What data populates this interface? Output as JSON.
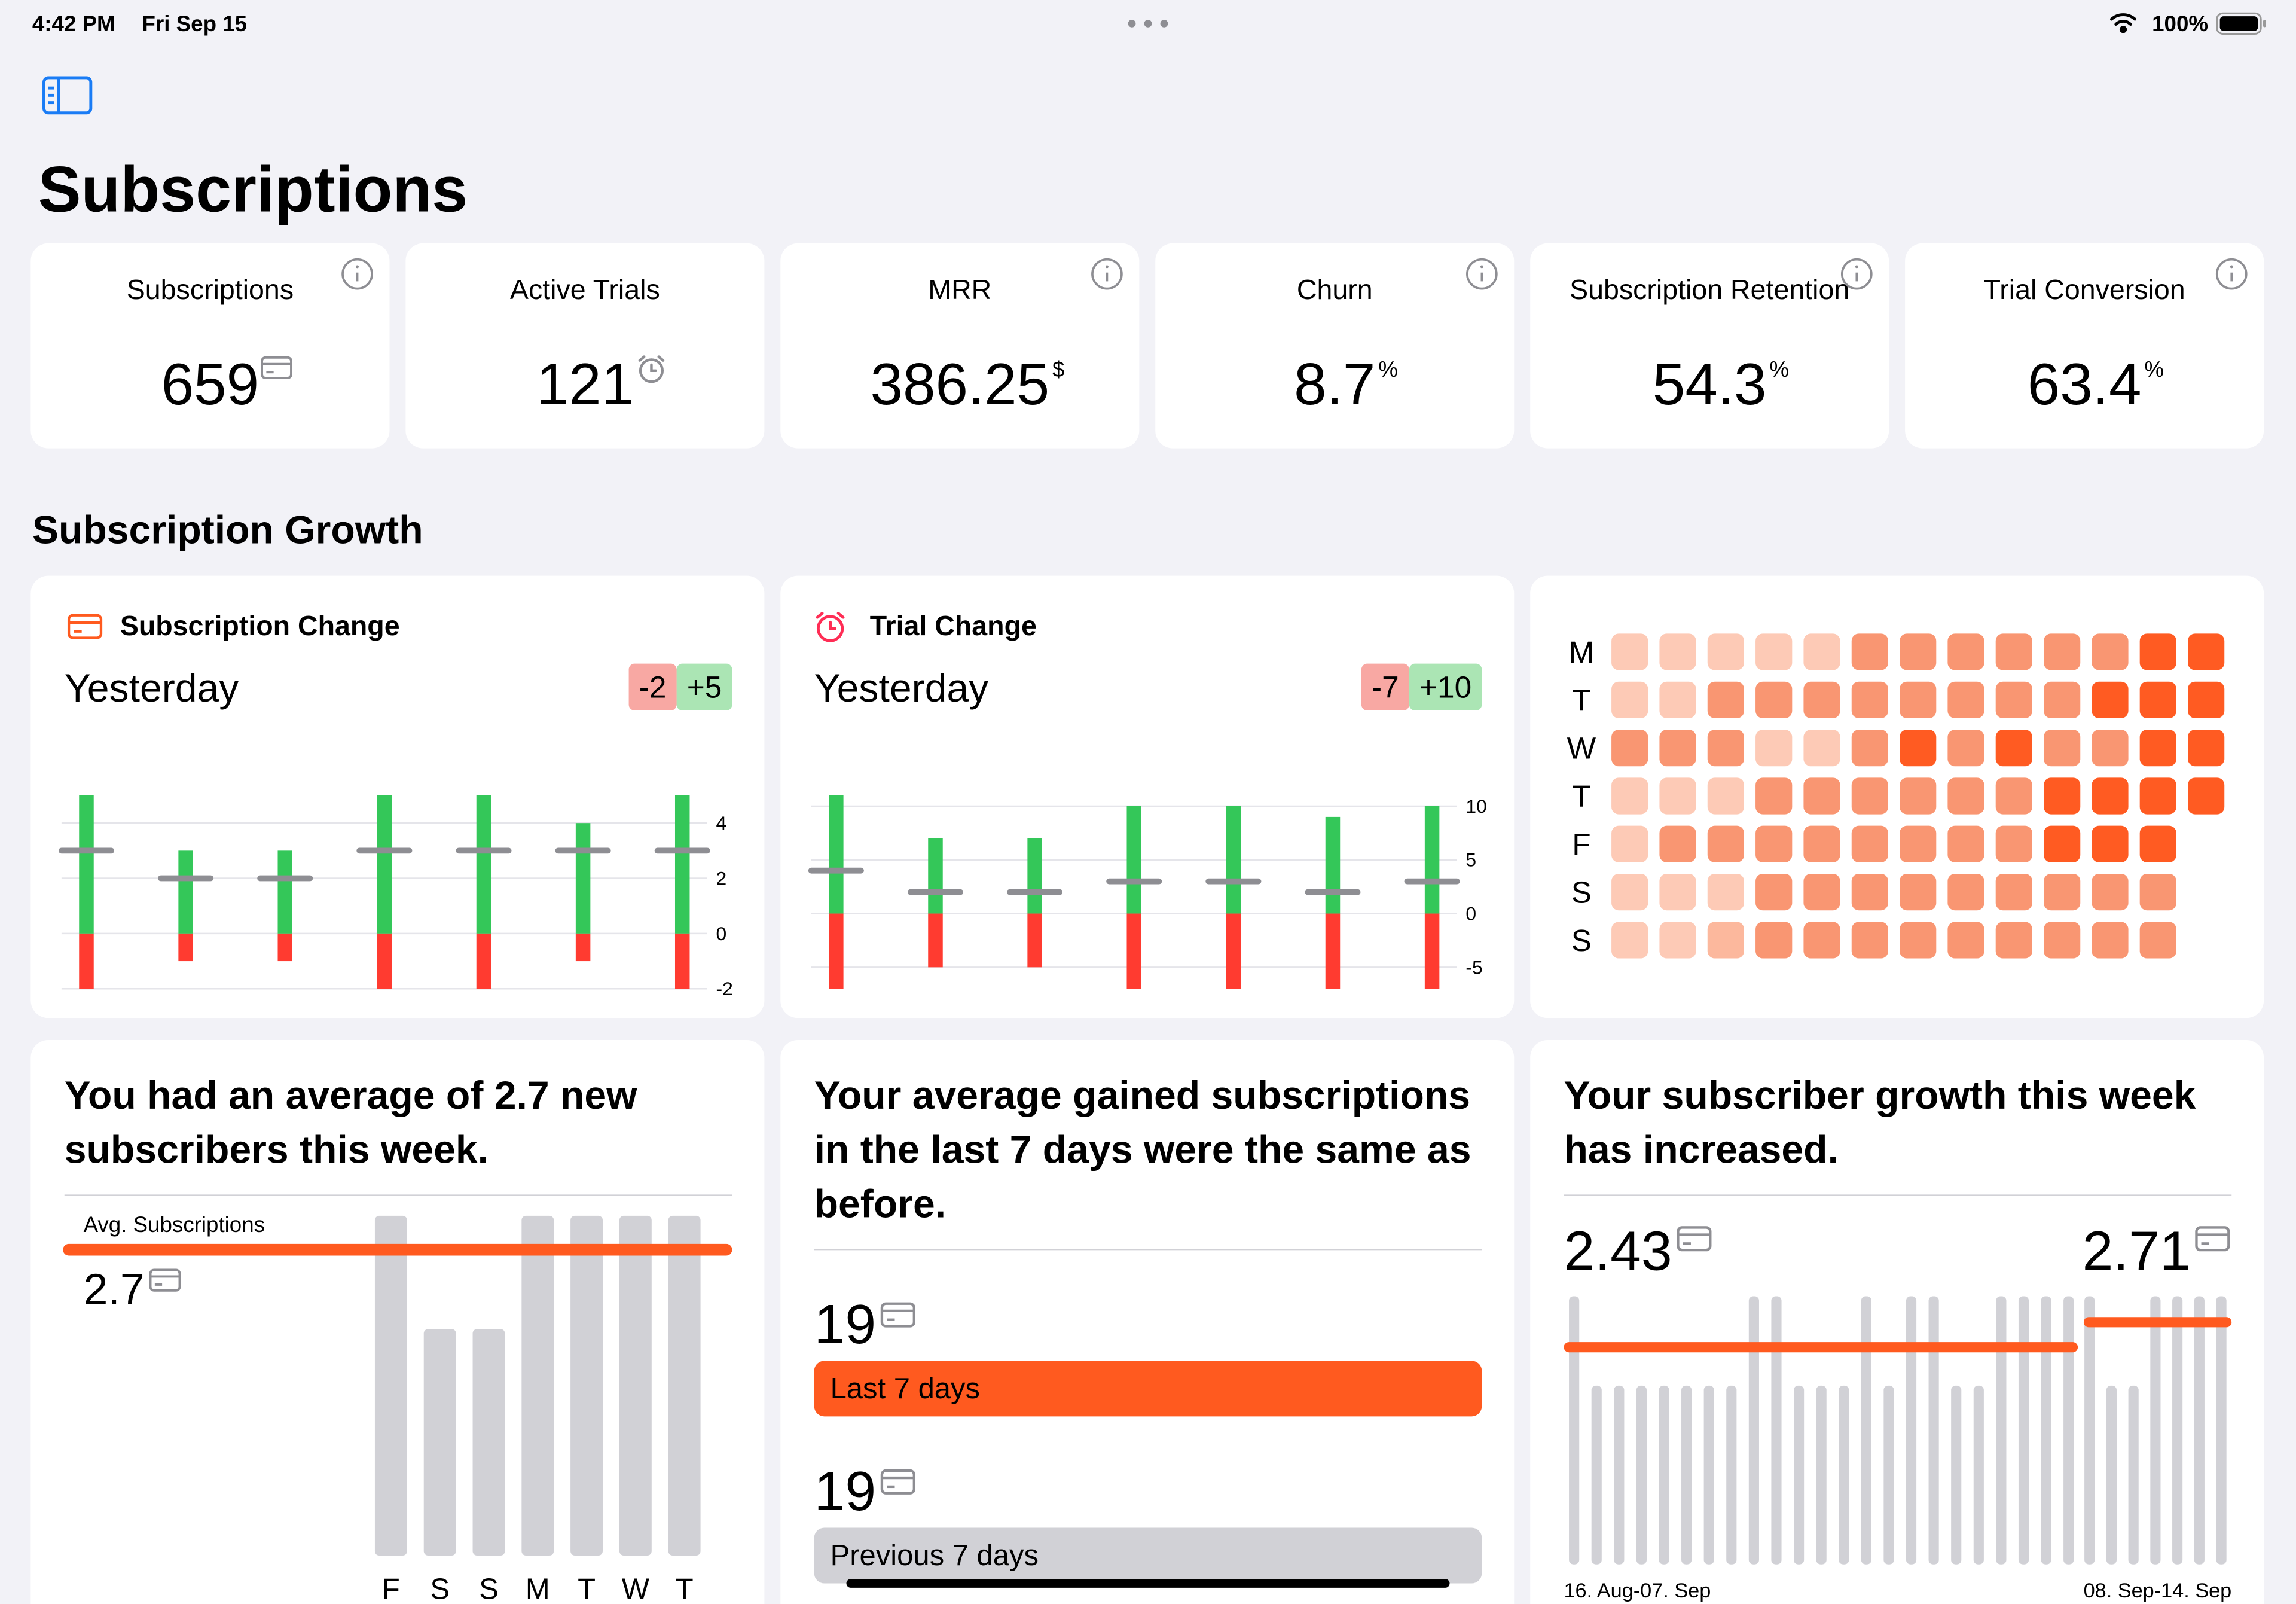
{
  "status_bar": {
    "time": "4:42 PM",
    "date": "Fri Sep 15",
    "battery": "100%"
  },
  "header": {
    "title": "Subscriptions"
  },
  "metrics": [
    {
      "label": "Subscriptions",
      "value": 659,
      "icon": "card",
      "info": true,
      "color": "#ff6421"
    },
    {
      "label": "Active Trials",
      "value": 121,
      "icon": "alarm",
      "info": false,
      "color": "#ff2d55"
    },
    {
      "label": "MRR",
      "value": 386.25,
      "unit": "$",
      "info": true,
      "color": "#000000"
    },
    {
      "label": "Churn",
      "value": 8.7,
      "unit": "%",
      "info": true,
      "color": "#000000"
    },
    {
      "label": "Subscription Retention",
      "value": 54.3,
      "unit": "%",
      "info": true,
      "color": "#000000"
    },
    {
      "label": "Trial Conversion",
      "value": 63.4,
      "unit": "%",
      "info": true,
      "color": "#000000"
    }
  ],
  "section_title": "Subscription Growth",
  "subscription_change": {
    "title": "Subscription Change",
    "period": "Yesterday",
    "negative_label": "-2",
    "positive_label": "+5",
    "chart": {
      "type": "delta-bar",
      "positive": [
        5,
        3,
        3,
        5,
        5,
        4,
        5
      ],
      "negative": [
        -2,
        -1,
        -1,
        -2,
        -2,
        -1,
        -2
      ],
      "average": [
        3,
        2,
        2,
        3,
        3,
        3,
        3
      ],
      "ylim": [
        -2,
        5
      ],
      "yticks": [
        -2,
        0,
        2,
        4
      ],
      "grid": true,
      "positive_color": "#34c759",
      "negative_color": "#ff3b30",
      "average_color": "#8e8e93"
    }
  },
  "trial_change": {
    "title": "Trial Change",
    "period": "Yesterday",
    "negative_label": "-7",
    "positive_label": "+10",
    "chart": {
      "type": "delta-bar",
      "positive": [
        11,
        7,
        7,
        10,
        10,
        9,
        10
      ],
      "negative": [
        -7,
        -5,
        -5,
        -7,
        -7,
        -7,
        -7
      ],
      "average": [
        4,
        2,
        2,
        3,
        3,
        2,
        3
      ],
      "ylim": [
        -7,
        11
      ],
      "yticks": [
        -5,
        0,
        5,
        10
      ],
      "grid": true,
      "positive_color": "#34c759",
      "negative_color": "#ff3b30",
      "average_color": "#8e8e93"
    }
  },
  "heatmap": {
    "type": "heatmap",
    "rows": [
      "M",
      "T",
      "W",
      "T",
      "F",
      "S",
      "S"
    ],
    "values": [
      [
        1,
        1,
        1,
        1,
        1,
        3,
        3,
        3,
        3,
        3,
        3,
        4,
        4
      ],
      [
        1,
        1,
        3,
        3,
        3,
        3,
        3,
        3,
        3,
        3,
        4,
        4,
        4
      ],
      [
        3,
        3,
        3,
        1,
        1,
        3,
        4,
        3,
        4,
        3,
        3,
        4,
        4
      ],
      [
        1,
        1,
        1,
        3,
        3,
        3,
        3,
        3,
        3,
        4,
        4,
        4,
        4
      ],
      [
        1,
        3,
        3,
        3,
        3,
        3,
        3,
        3,
        3,
        4,
        4,
        4
      ],
      [
        1,
        1,
        1,
        3,
        3,
        3,
        3,
        3,
        3,
        3,
        3,
        3
      ],
      [
        1,
        1,
        2,
        3,
        3,
        3,
        3,
        3,
        3,
        3,
        3,
        3
      ]
    ],
    "colors": [
      "#fdcab6",
      "#fcb89d",
      "#f99672",
      "#ff5b22"
    ]
  },
  "average_card": {
    "headline": "You had an average of 2.7 new subscribers this week.",
    "label": "Avg. Subscriptions",
    "average": 2.7,
    "chart": {
      "type": "bar",
      "categories": [
        "F",
        "S",
        "S",
        "M",
        "T",
        "W",
        "T"
      ],
      "values": [
        3,
        2,
        2,
        3,
        3,
        3,
        3
      ],
      "ylim": [
        0,
        3
      ],
      "color": "#d1d1d6",
      "line_color": "#ff5a1f"
    }
  },
  "comparison_card": {
    "headline": "Your average gained subscriptions in the last 7 days were the same as before.",
    "bars": [
      {
        "name": "Last 7 days",
        "value": 19,
        "color": "#ff5a1f"
      },
      {
        "name": "Previous 7 days",
        "value": 19,
        "color": "#d1d1d6"
      }
    ]
  },
  "growth_card": {
    "headline": "Your subscriber growth this week has increased.",
    "previous_average": 2.43,
    "current_average": 2.71,
    "previous_label": "16. Aug-07. Sep",
    "current_label": "08. Sep-14. Sep",
    "chart": {
      "type": "bar",
      "previous": [
        3,
        2,
        2,
        2,
        2,
        2,
        2,
        2,
        3,
        3,
        2,
        2,
        2,
        3,
        2,
        3,
        3,
        2,
        2,
        3,
        3,
        3,
        3
      ],
      "current": [
        3,
        2,
        2,
        3,
        3,
        3,
        3
      ],
      "ylim": [
        0,
        3
      ],
      "color": "#d1d1d6",
      "line_color": "#ff5a1f"
    }
  }
}
